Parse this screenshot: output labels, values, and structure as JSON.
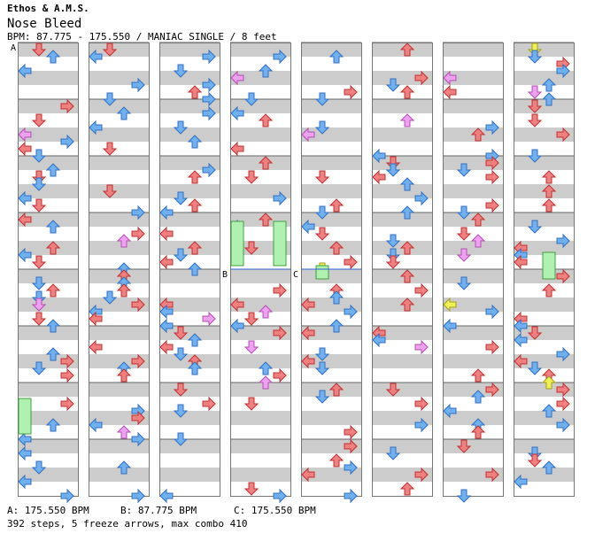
{
  "header": {
    "artist": "Ethos & A.M.S.",
    "title": "Nose Bleed",
    "info": "BPM: 87.775 - 175.550 / MANIAC SINGLE / 8 feet"
  },
  "chart_data": {
    "type": "stepchart",
    "columns": 8,
    "measures_per_column": 8,
    "bpm_markers": [
      {
        "label": "A",
        "bpm": 175.55
      },
      {
        "label": "B",
        "bpm": 87.775
      },
      {
        "label": "C",
        "bpm": 175.55
      }
    ],
    "summary": {
      "steps": 392,
      "freeze_arrows": 5,
      "max_combo": 410
    }
  },
  "footer": {
    "bpm_a": "A: 175.550 BPM",
    "bpm_b": "B: 87.775 BPM",
    "bpm_c": "C: 175.550 BPM",
    "stats": "392 steps, 5 freeze arrows, max combo 410"
  },
  "colors": {
    "red": "#f08080",
    "blue": "#70b0f0",
    "pink": "#f0a0f0",
    "yellow": "#f0f050",
    "freeze": "#b0f0b0",
    "stripe": "#cccccc"
  }
}
